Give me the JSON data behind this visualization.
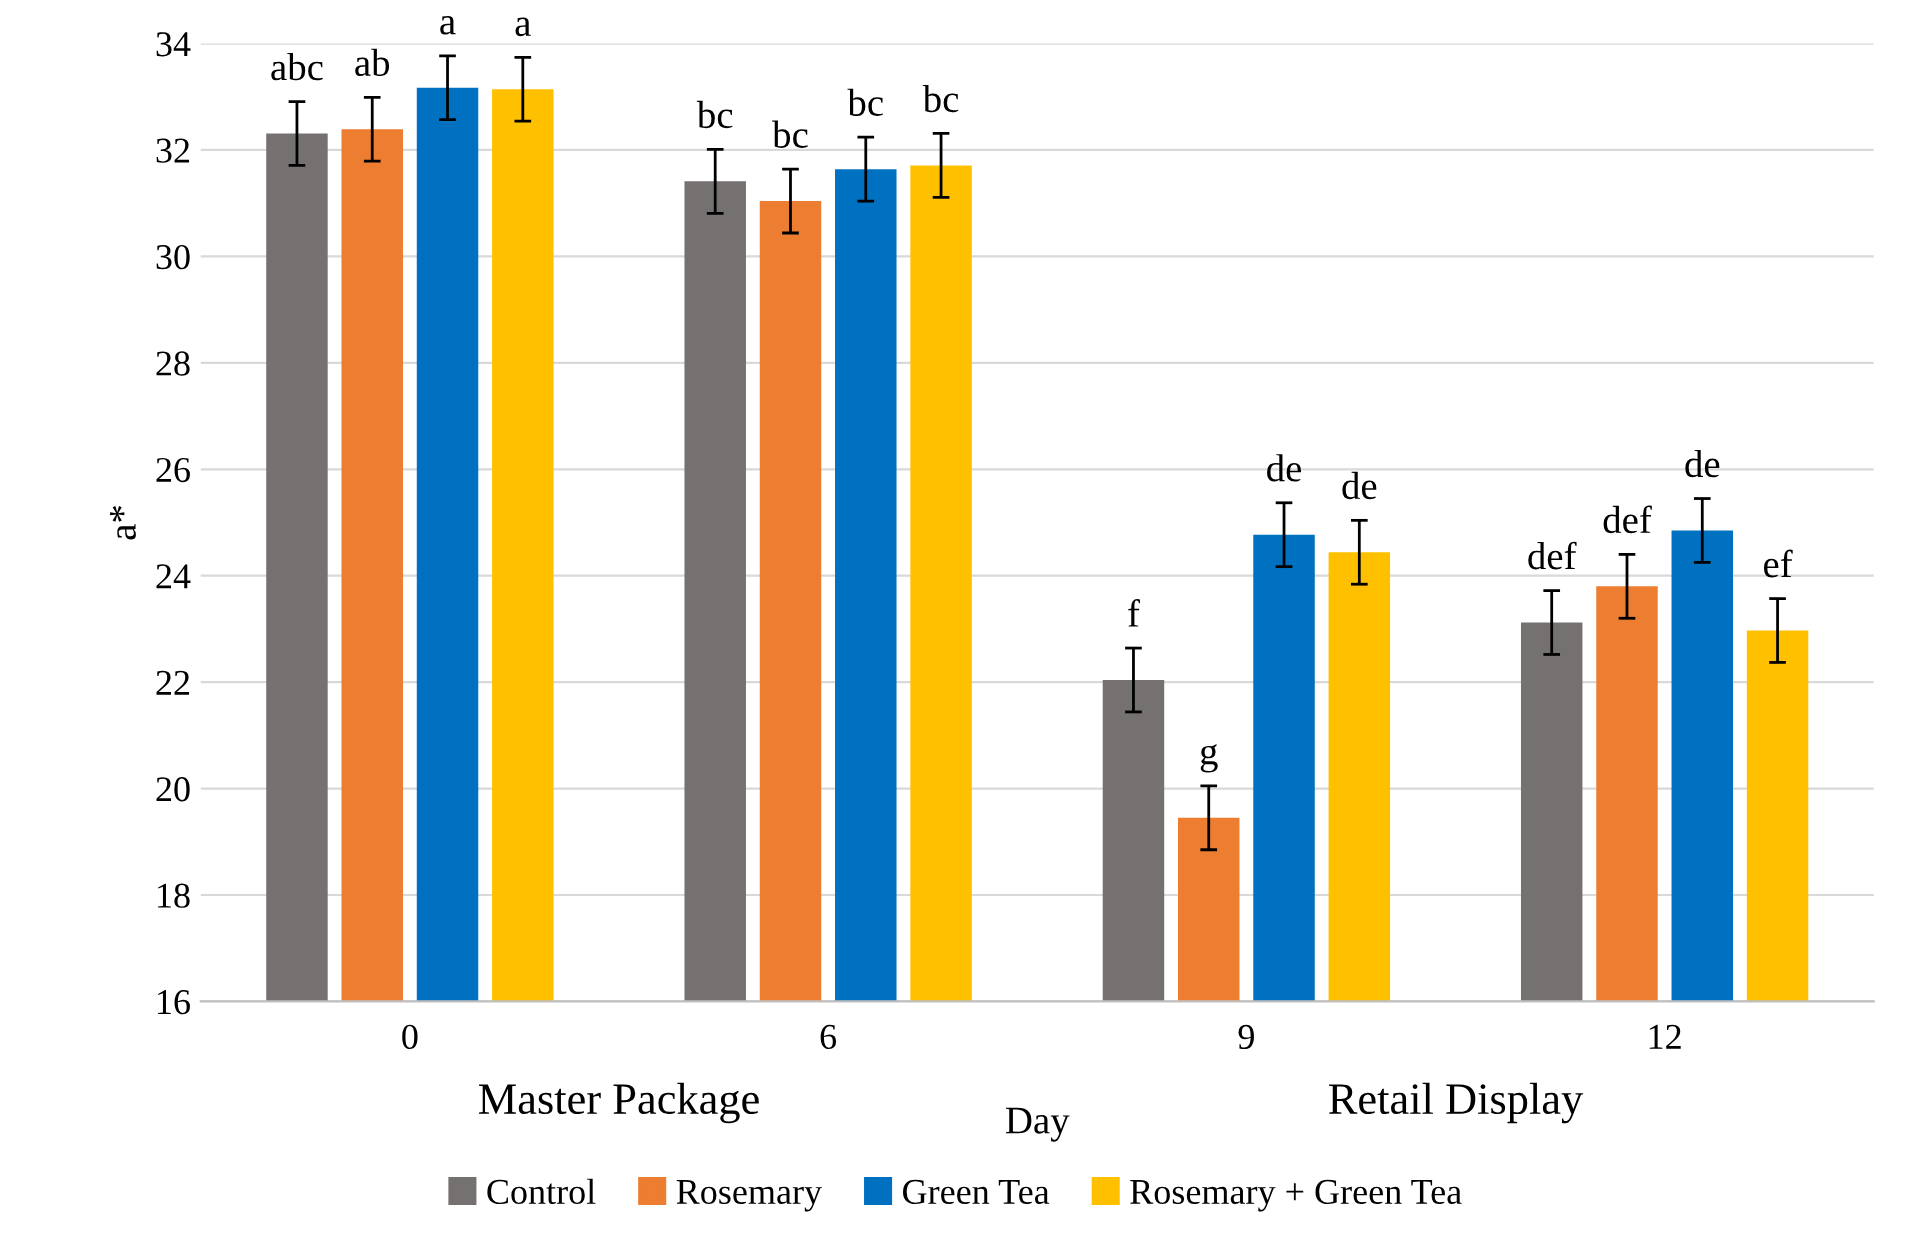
{
  "chart_data": {
    "type": "bar",
    "xlabel": "Day",
    "ylabel": "a*",
    "categories": [
      "0",
      "6",
      "9",
      "12"
    ],
    "series": [
      {
        "name": "Control",
        "color": "#767171",
        "values": [
          32.31,
          31.41,
          22.04,
          23.12
        ],
        "errors": [
          0.6,
          0.6,
          0.6,
          0.6
        ],
        "value_labels": [
          "abc",
          "bc",
          "f",
          "def"
        ]
      },
      {
        "name": "Rosemary",
        "color": "#ed7d31",
        "values": [
          32.39,
          31.04,
          19.45,
          23.8
        ],
        "errors": [
          0.6,
          0.6,
          0.6,
          0.6
        ],
        "value_labels": [
          "ab",
          "bc",
          "g",
          "def"
        ]
      },
      {
        "name": "Green Tea",
        "color": "#0070c0",
        "values": [
          33.17,
          31.64,
          24.77,
          24.85
        ],
        "errors": [
          0.6,
          0.6,
          0.6,
          0.6
        ],
        "value_labels": [
          "a",
          "bc",
          "de",
          "de"
        ]
      },
      {
        "name": "Rosemary + Green Tea",
        "color": "#ffc000",
        "values": [
          33.14,
          31.71,
          24.44,
          22.97
        ],
        "errors": [
          0.6,
          0.6,
          0.6,
          0.6
        ],
        "value_labels": [
          "a",
          "bc",
          "de",
          "ef"
        ]
      }
    ],
    "annotations": [
      "Master Package",
      "Retail Display"
    ],
    "ylim": [
      16,
      34
    ],
    "yticks": [
      16,
      18,
      20,
      22,
      24,
      26,
      28,
      30,
      32,
      34
    ],
    "grid": "y",
    "legend": "bottom"
  }
}
